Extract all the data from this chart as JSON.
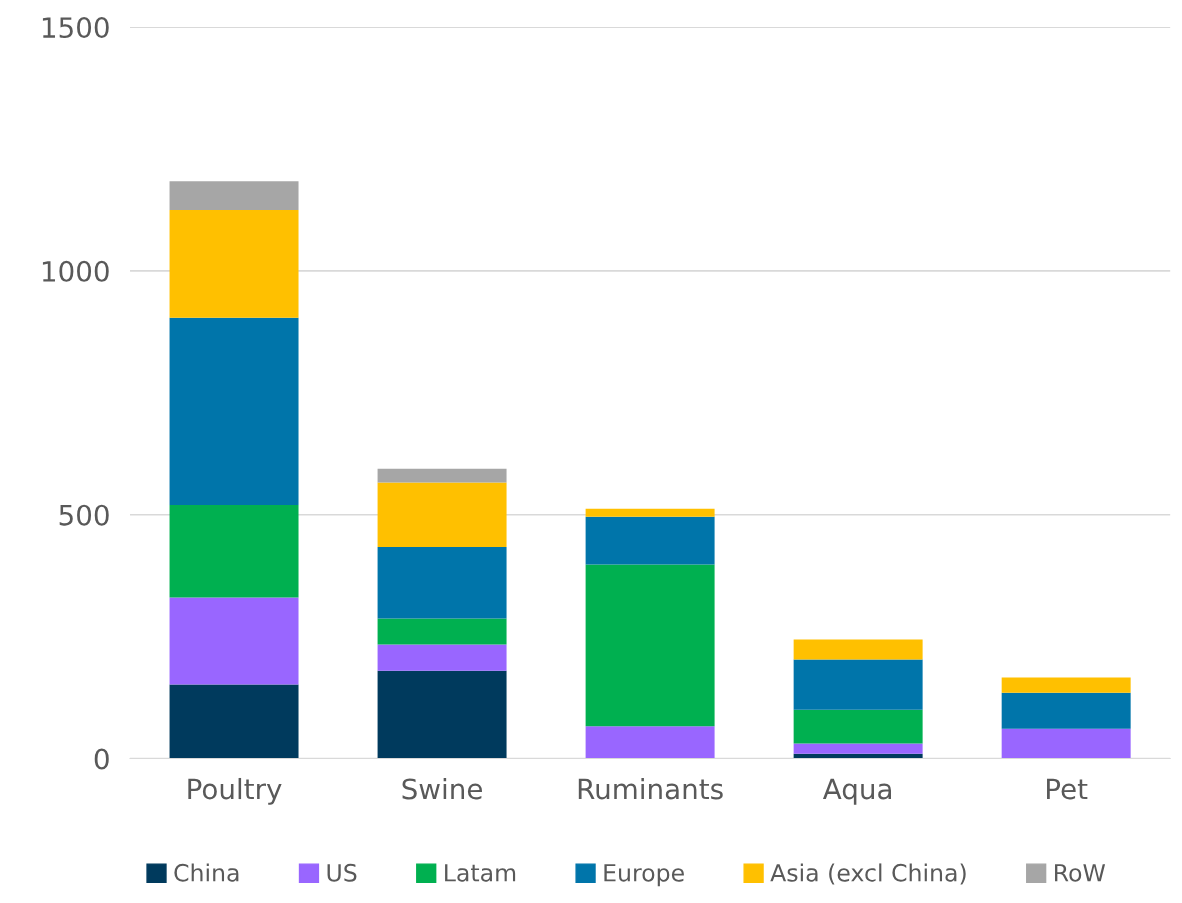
{
  "chart_data": {
    "type": "bar",
    "stacked": true,
    "categories": [
      "Poultry",
      "Swine",
      "Ruminants",
      "Aqua",
      "Pet"
    ],
    "series": [
      {
        "name": "China",
        "color": "#003a5d",
        "values": [
          152,
          180,
          0,
          10,
          0
        ]
      },
      {
        "name": "US",
        "color": "#9966ff",
        "values": [
          178,
          54,
          66,
          21,
          61
        ]
      },
      {
        "name": "Latam",
        "color": "#00b050",
        "values": [
          190,
          53,
          332,
          69,
          0
        ]
      },
      {
        "name": "Europe",
        "color": "#0075aa",
        "values": [
          384,
          147,
          98,
          103,
          74
        ]
      },
      {
        "name": "Asia (excl China)",
        "color": "#ffc000",
        "values": [
          221,
          132,
          16,
          41,
          31
        ]
      },
      {
        "name": "RoW",
        "color": "#a6a6a6",
        "values": [
          59,
          28,
          0,
          0,
          0
        ]
      }
    ],
    "ylim": [
      0,
      1500
    ],
    "yticks": [
      0,
      500,
      1000,
      1500
    ],
    "grid": "y",
    "legend": "bottom"
  }
}
